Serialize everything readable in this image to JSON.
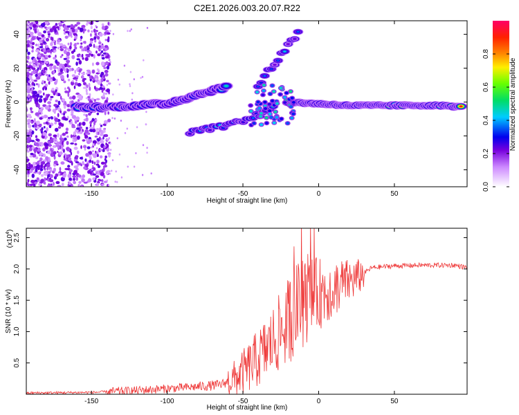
{
  "title": "C2E1.2026.003.20.07.R22",
  "chart_data": [
    {
      "type": "heatmap",
      "name": "spectrogram",
      "xlabel": "Height of straight line (km)",
      "ylabel": "Frequency (Hz)",
      "xlim": [
        -193,
        98
      ],
      "ylim": [
        -50,
        48
      ],
      "xticks": [
        -150,
        -100,
        -50,
        0,
        50
      ],
      "yticks": [
        -40,
        -20,
        0,
        20,
        40
      ],
      "colorbar": {
        "label": "Normalized spectral amplitude",
        "range": [
          0,
          1
        ],
        "ticks": [
          "0.0",
          "0.2",
          "0.4",
          "0.6",
          "0.8"
        ],
        "tick_values": [
          0,
          0.2,
          0.4,
          0.6,
          0.8
        ]
      },
      "features": [
        {
          "name": "main-ridge",
          "x": [
            -160,
            -140,
            -120,
            -100,
            -85,
            -70,
            -60
          ],
          "freq": [
            -3,
            -3,
            -2,
            -1,
            3,
            7,
            9
          ],
          "amplitude": 0.55
        },
        {
          "name": "ridge-plateau",
          "x": [
            -20,
            0,
            20,
            40,
            60,
            80,
            95
          ],
          "freq": [
            0,
            -1,
            -2,
            -2,
            -2,
            -2,
            -3
          ],
          "amplitude": 0.9
        },
        {
          "name": "upper-branch",
          "x": [
            -40,
            -30,
            -20,
            -12
          ],
          "freq": [
            10,
            22,
            33,
            42
          ],
          "amplitude": 0.2
        },
        {
          "name": "lower-branch",
          "x": [
            -85,
            -60,
            -40,
            -28
          ],
          "freq": [
            -18,
            -14,
            -8,
            0
          ],
          "amplitude": 0.25
        }
      ]
    },
    {
      "type": "line",
      "name": "snr",
      "xlabel": "Height of straight line (km)",
      "ylabel": "SNR (10 * v/v)",
      "y_multiplier_label": "(x10",
      "y_multiplier_exp": "4",
      "xlim": [
        -193,
        98
      ],
      "ylim": [
        0,
        2.65
      ],
      "xticks": [
        -150,
        -100,
        -50,
        0,
        50
      ],
      "yticks": [
        "0.5",
        "1.0",
        "1.5",
        "2.0",
        "2.5"
      ],
      "ytick_values": [
        0.5,
        1.0,
        1.5,
        2.0,
        2.5
      ],
      "color": "#ee3333",
      "envelope": {
        "x": [
          -193,
          -150,
          -120,
          -100,
          -80,
          -65,
          -55,
          -45,
          -35,
          -25,
          -15,
          -5,
          5,
          15,
          25,
          35,
          50,
          70,
          90,
          98
        ],
        "y": [
          0.02,
          0.03,
          0.06,
          0.09,
          0.12,
          0.15,
          0.25,
          0.45,
          0.7,
          1.0,
          1.35,
          1.55,
          1.65,
          1.75,
          1.85,
          2.02,
          2.05,
          2.06,
          2.06,
          2.02
        ]
      }
    }
  ]
}
